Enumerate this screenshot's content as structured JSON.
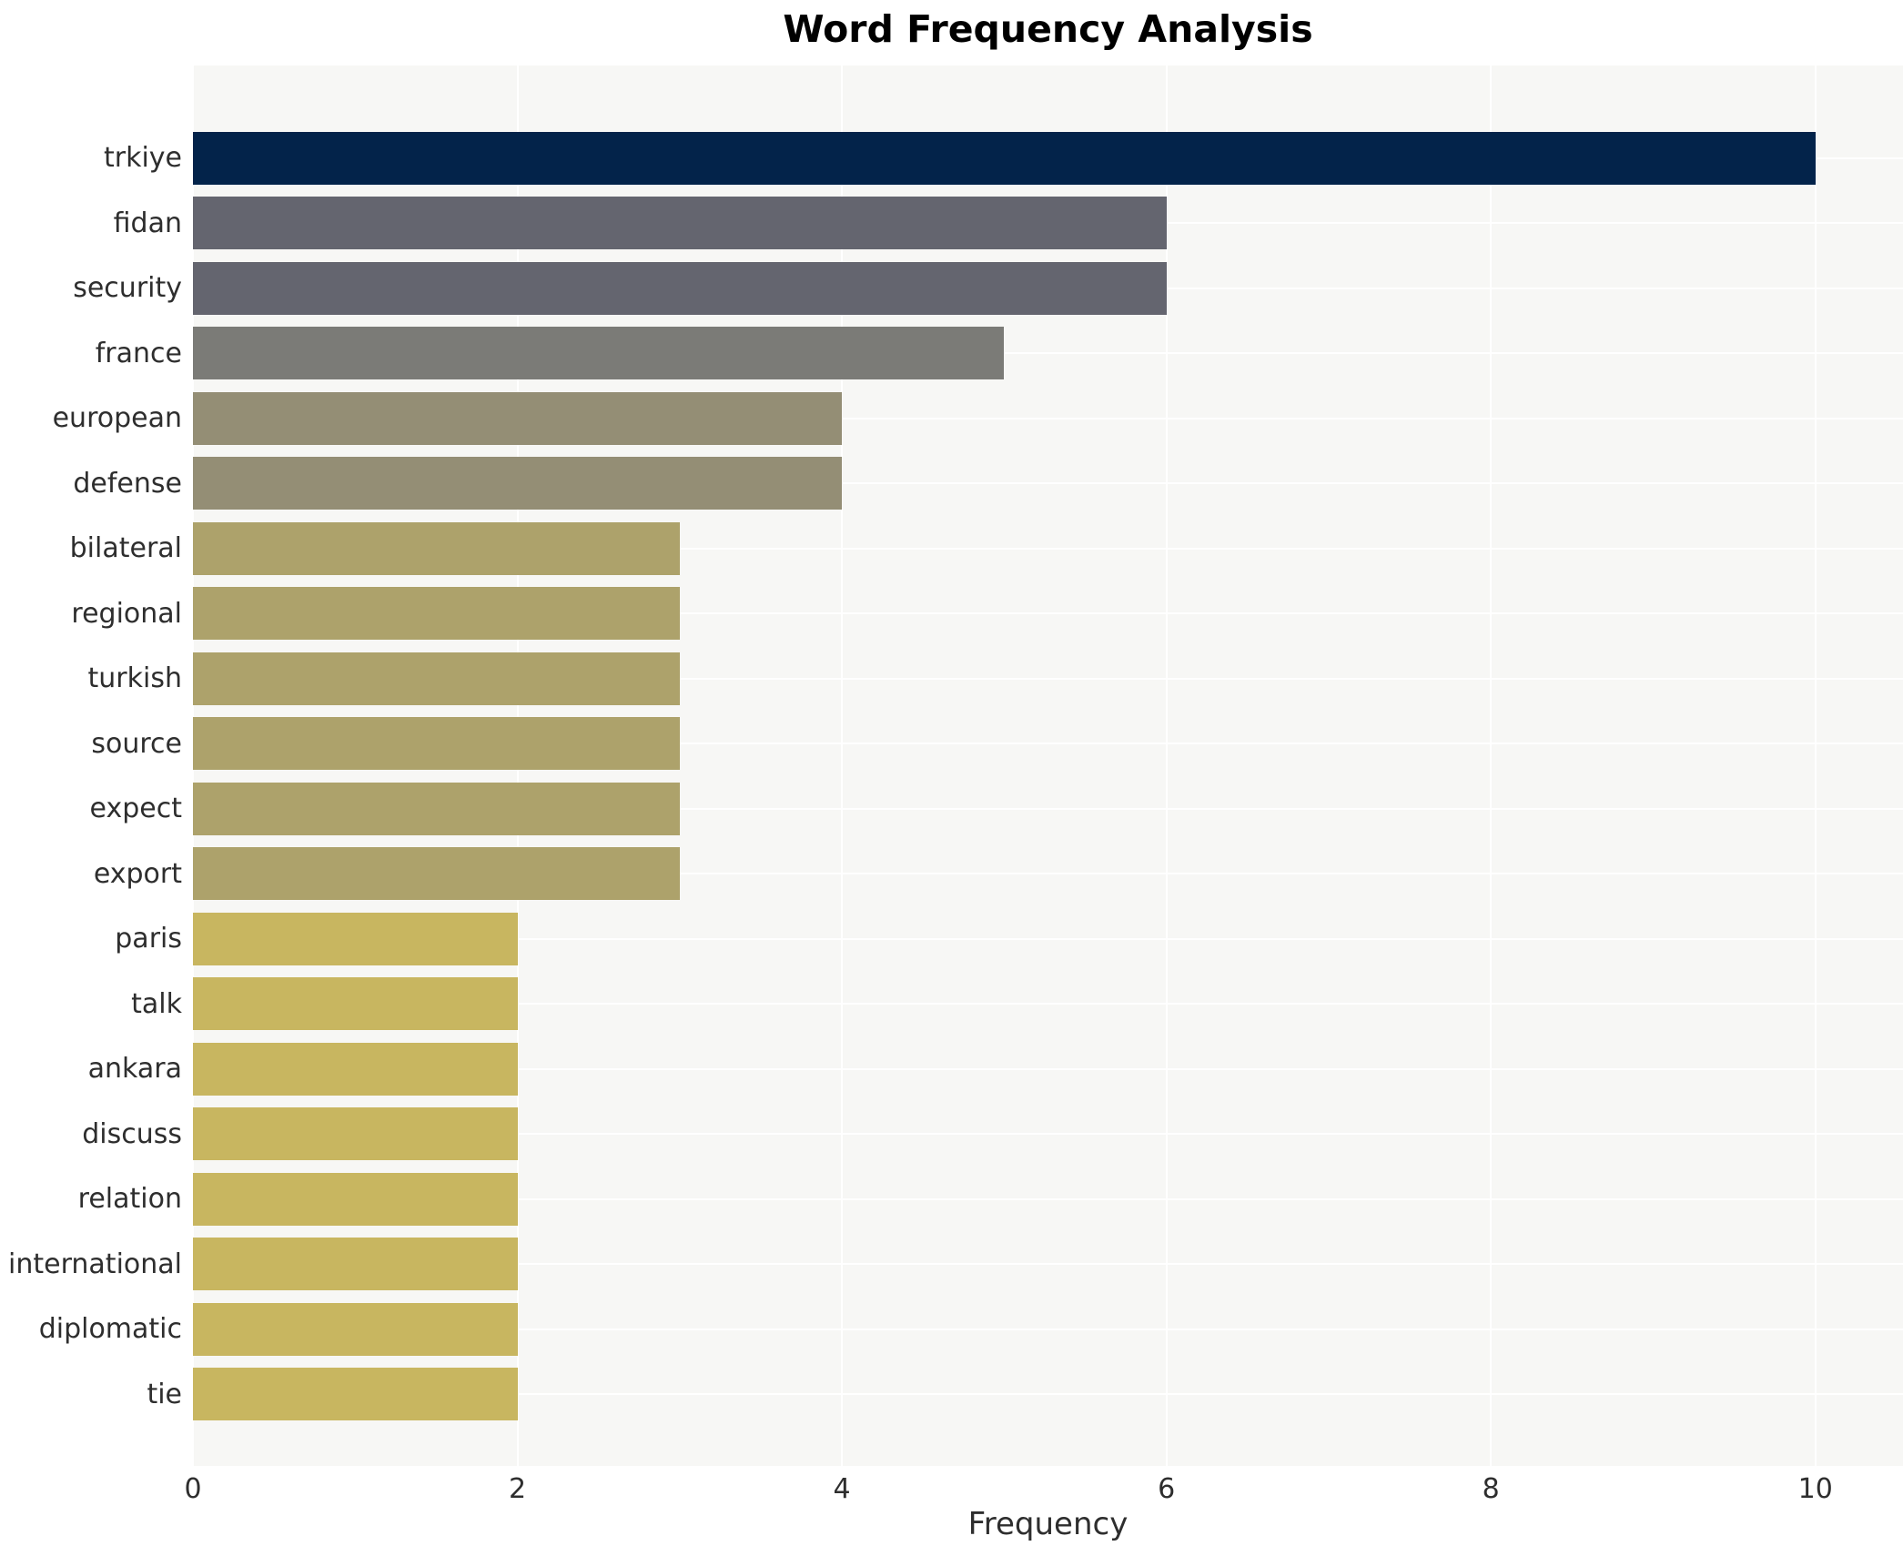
{
  "chart_data": {
    "type": "bar",
    "orientation": "horizontal",
    "title": "Word Frequency Analysis",
    "xlabel": "Frequency",
    "ylabel": "",
    "categories": [
      "trkiye",
      "fidan",
      "security",
      "france",
      "european",
      "defense",
      "bilateral",
      "regional",
      "turkish",
      "source",
      "expect",
      "export",
      "paris",
      "talk",
      "ankara",
      "discuss",
      "relation",
      "international",
      "diplomatic",
      "tie"
    ],
    "values": [
      10,
      6,
      6,
      5,
      4,
      4,
      3,
      3,
      3,
      3,
      3,
      3,
      2,
      2,
      2,
      2,
      2,
      2,
      2,
      2
    ],
    "bar_colors": [
      "#03234a",
      "#64656f",
      "#64656f",
      "#7b7b77",
      "#948e75",
      "#948e75",
      "#ada26b",
      "#ada26b",
      "#ada26b",
      "#ada26b",
      "#ada26b",
      "#ada26b",
      "#c8b660",
      "#c8b660",
      "#c8b660",
      "#c8b660",
      "#c8b660",
      "#c8b660",
      "#c8b660",
      "#c8b660"
    ],
    "xlim": [
      0,
      10.54
    ],
    "xticks": [
      0,
      2,
      4,
      6,
      8,
      10
    ],
    "grid": "white gridlines on light panel, both axes",
    "legend": "none"
  },
  "colors": {
    "panel_background": "#f7f7f5",
    "gridline": "#ffffff",
    "title_text": "#000000",
    "tick_text": "#2e2e2e",
    "max_bar": "#03234a"
  }
}
